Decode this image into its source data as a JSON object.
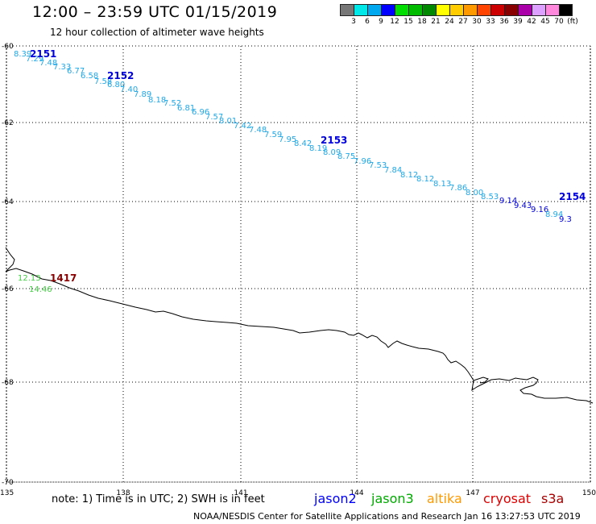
{
  "header": {
    "title": "12:00 – 23:59 UTC 01/15/2019",
    "subtitle": "12 hour collection of altimeter wave heights"
  },
  "color_scale": {
    "labels": [
      "3",
      "6",
      "9",
      "12",
      "15",
      "18",
      "21",
      "24",
      "27",
      "30",
      "33",
      "36",
      "39",
      "42",
      "45",
      "70",
      "(ft)"
    ],
    "colors": [
      "#777777",
      "#00e8e8",
      "#00a8f0",
      "#0000ff",
      "#00dd00",
      "#00bb00",
      "#008800",
      "#ffff00",
      "#ffcc00",
      "#ff9900",
      "#ff4400",
      "#cc0000",
      "#880000",
      "#aa00aa",
      "#dda0ff",
      "#ff88dd",
      "#000000"
    ]
  },
  "map": {
    "lat_labels": [
      "-60",
      "-62",
      "-64",
      "-66",
      "-68",
      "-70"
    ],
    "lon_labels": [
      "135",
      "138",
      "141",
      "144",
      "147",
      "150"
    ],
    "pass_labels": [
      {
        "text": "2151",
        "color": "#0000dd"
      },
      {
        "text": "2152",
        "color": "#0000dd"
      },
      {
        "text": "2153",
        "color": "#0000dd"
      },
      {
        "text": "2154",
        "color": "#0000dd"
      },
      {
        "text": "1417",
        "color": "#880000"
      }
    ],
    "track_values": [
      {
        "v": "8.39",
        "c": "#20a8e8"
      },
      {
        "v": "7.29",
        "c": "#20a8e8"
      },
      {
        "v": "7.48",
        "c": "#20a8e8"
      },
      {
        "v": "7.33",
        "c": "#20a8e8"
      },
      {
        "v": "6.77",
        "c": "#20a8e8"
      },
      {
        "v": "6.58",
        "c": "#20a8e8"
      },
      {
        "v": "7.58",
        "c": "#20a8e8"
      },
      {
        "v": "6.80",
        "c": "#20a8e8"
      },
      {
        "v": "7.40",
        "c": "#20a8e8"
      },
      {
        "v": "7.89",
        "c": "#20a8e8"
      },
      {
        "v": "8.18",
        "c": "#20a8e8"
      },
      {
        "v": "7.52",
        "c": "#20a8e8"
      },
      {
        "v": "6.81",
        "c": "#20a8e8"
      },
      {
        "v": "6.96",
        "c": "#20a8e8"
      },
      {
        "v": "7.57",
        "c": "#20a8e8"
      },
      {
        "v": "8.01",
        "c": "#20a8e8"
      },
      {
        "v": "7.42",
        "c": "#20a8e8"
      },
      {
        "v": "7.48",
        "c": "#20a8e8"
      },
      {
        "v": "7.59",
        "c": "#20a8e8"
      },
      {
        "v": "7.95",
        "c": "#20a8e8"
      },
      {
        "v": "8.42",
        "c": "#20a8e8"
      },
      {
        "v": "8.19",
        "c": "#20a8e8"
      },
      {
        "v": "8.09",
        "c": "#20a8e8"
      },
      {
        "v": "8.75",
        "c": "#20a8e8"
      },
      {
        "v": "7.96",
        "c": "#20a8e8"
      },
      {
        "v": "7.53",
        "c": "#20a8e8"
      },
      {
        "v": "7.84",
        "c": "#20a8e8"
      },
      {
        "v": "8.12",
        "c": "#20a8e8"
      },
      {
        "v": "8.12",
        "c": "#20a8e8"
      },
      {
        "v": "8.13",
        "c": "#20a8e8"
      },
      {
        "v": "7.86",
        "c": "#20a8e8"
      },
      {
        "v": "8.00",
        "c": "#20a8e8"
      },
      {
        "v": "8.53",
        "c": "#20a8e8"
      },
      {
        "v": "9.14",
        "c": "#0000dd"
      },
      {
        "v": "9.43",
        "c": "#0000dd"
      },
      {
        "v": "9.16",
        "c": "#0000dd"
      },
      {
        "v": "8.94",
        "c": "#20a8e8"
      },
      {
        "v": "9.3",
        "c": "#0000dd"
      },
      {
        "v": "12.13",
        "c": "#44cc44"
      },
      {
        "v": "14.46",
        "c": "#44cc44"
      }
    ]
  },
  "note": "note:  1) Time is in UTC;  2) SWH is in feet",
  "satellites": [
    {
      "name": "jason2",
      "color": "#0000ff"
    },
    {
      "name": "jason3",
      "color": "#00aa00"
    },
    {
      "name": "altika",
      "color": "#ff9900"
    },
    {
      "name": "cryosat",
      "color": "#dd0000"
    },
    {
      "name": "s3a",
      "color": "#aa0000"
    }
  ],
  "footer": "NOAA/NESDIS Center for Satellite Applications and Research    Jan 16 13:27:53 UTC 2019"
}
